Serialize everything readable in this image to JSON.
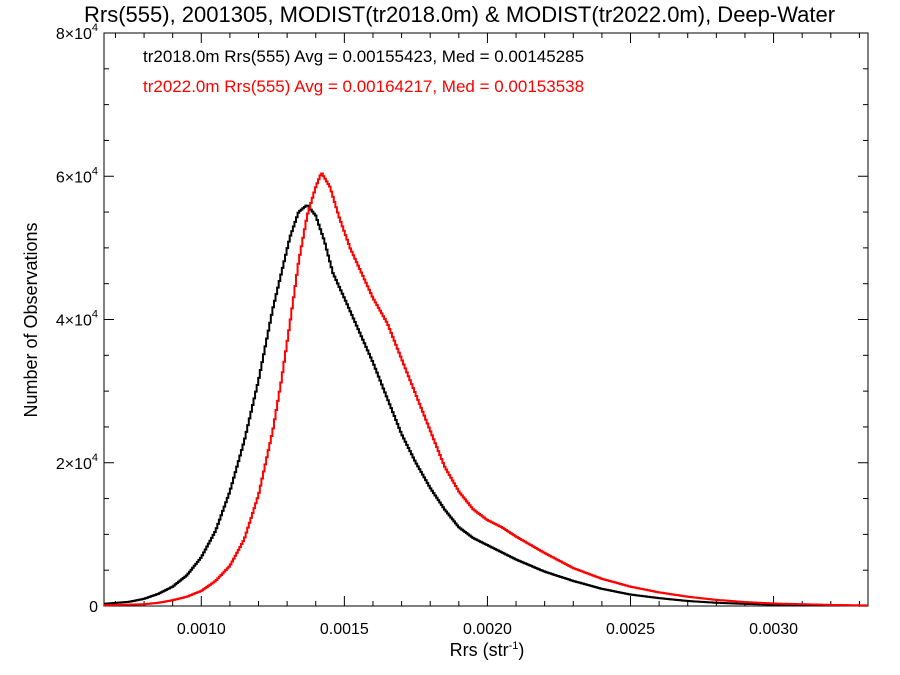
{
  "chart_data": {
    "type": "line",
    "step": true,
    "title": "Rrs(555), 2001305, MODIST(tr2018.0m) & MODIST(tr2022.0m), Deep-Water",
    "xlabel": "Rrs (str",
    "xlabel_sup": "-1",
    "xlabel_close": ")",
    "ylabel": "Number of Observations",
    "xlim": [
      0.00066,
      0.00333
    ],
    "ylim": [
      0,
      80000
    ],
    "x_ticks": [
      0.001,
      0.0015,
      0.002,
      0.0025,
      0.003
    ],
    "x_tick_labels": [
      "0.0010",
      "0.0015",
      "0.0020",
      "0.0025",
      "0.0030"
    ],
    "y_ticks": [
      0,
      20000,
      40000,
      60000,
      80000
    ],
    "y_tick_labels": [
      {
        "base": "0",
        "sup": ""
      },
      {
        "base": "2×10",
        "sup": "4"
      },
      {
        "base": "4×10",
        "sup": "4"
      },
      {
        "base": "6×10",
        "sup": "4"
      },
      {
        "base": "8×10",
        "sup": "4"
      }
    ],
    "annotations": [
      {
        "text": "tr2018.0m Rrs(555) Avg = 0.00155423, Med = 0.00145285",
        "color": "#000000"
      },
      {
        "text": "tr2022.0m Rrs(555) Avg = 0.00164217, Med = 0.00153538",
        "color": "#ff0000"
      }
    ],
    "series": [
      {
        "color": "#000000",
        "x": [
          0.00066,
          0.00075,
          0.0008,
          0.00085,
          0.0009,
          0.00095,
          0.001,
          0.00105,
          0.0011,
          0.00115,
          0.0012,
          0.00125,
          0.00128,
          0.00131,
          0.00134,
          0.00137,
          0.0014,
          0.00143,
          0.00146,
          0.0015,
          0.00155,
          0.0016,
          0.00165,
          0.0017,
          0.00175,
          0.0018,
          0.00185,
          0.0019,
          0.00195,
          0.002,
          0.00205,
          0.0021,
          0.0022,
          0.0023,
          0.0024,
          0.0025,
          0.0026,
          0.0027,
          0.0028,
          0.0029,
          0.003,
          0.0031,
          0.0032,
          0.00333
        ],
        "y": [
          300,
          600,
          1000,
          1700,
          2700,
          4300,
          6800,
          10500,
          16000,
          23000,
          31500,
          41500,
          46500,
          51500,
          55000,
          56000,
          54500,
          51000,
          46500,
          43000,
          38500,
          34000,
          29000,
          24000,
          20000,
          16500,
          13500,
          11000,
          9500,
          8500,
          7500,
          6500,
          4800,
          3500,
          2400,
          1600,
          1100,
          700,
          450,
          300,
          200,
          150,
          100,
          50
        ]
      },
      {
        "color": "#ff0000",
        "x": [
          0.00066,
          0.0008,
          0.00085,
          0.0009,
          0.00095,
          0.001,
          0.00105,
          0.0011,
          0.00115,
          0.0012,
          0.00125,
          0.00128,
          0.00131,
          0.00134,
          0.00137,
          0.0014,
          0.00142,
          0.00145,
          0.00148,
          0.00152,
          0.00156,
          0.0016,
          0.00165,
          0.0017,
          0.00175,
          0.0018,
          0.00185,
          0.0019,
          0.00195,
          0.002,
          0.00205,
          0.0021,
          0.0022,
          0.0023,
          0.0024,
          0.0025,
          0.0026,
          0.0027,
          0.0028,
          0.0029,
          0.003,
          0.0031,
          0.0032,
          0.00333
        ],
        "y": [
          100,
          250,
          450,
          800,
          1300,
          2100,
          3500,
          5600,
          9300,
          15500,
          24500,
          31500,
          39500,
          48000,
          54500,
          58500,
          60500,
          58500,
          54500,
          50000,
          46500,
          43000,
          39500,
          34500,
          29500,
          24500,
          19500,
          16000,
          13500,
          12000,
          11000,
          9700,
          7400,
          5300,
          3800,
          2700,
          1900,
          1300,
          850,
          550,
          350,
          250,
          150,
          80
        ]
      }
    ]
  }
}
